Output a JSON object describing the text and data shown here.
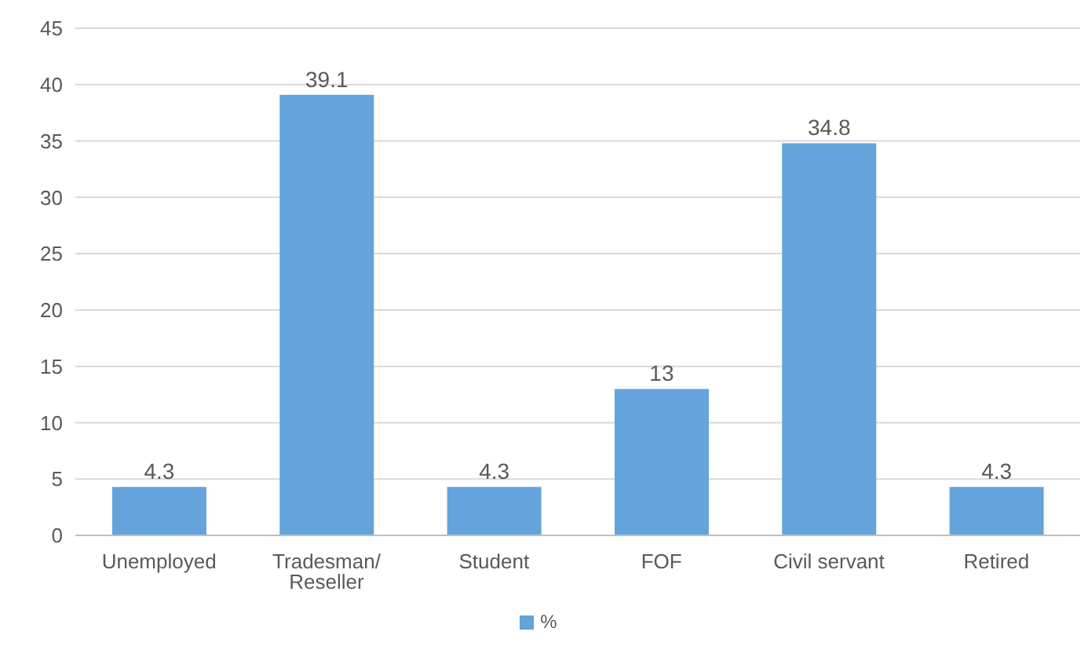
{
  "chart_data": {
    "type": "bar",
    "categories": [
      "Unemployed",
      "Tradesman/ Reseller",
      "Student",
      "FOF",
      "Civil servant",
      "Retired"
    ],
    "series": [
      {
        "name": "%",
        "color": "#64a3dc",
        "values": [
          4.3,
          39.1,
          4.3,
          13,
          34.8,
          4.3
        ]
      }
    ],
    "ylim": [
      0,
      45
    ],
    "yticks": [
      0,
      5,
      10,
      15,
      20,
      25,
      30,
      35,
      40,
      45
    ],
    "grid": "y",
    "legend": "bottom",
    "data_labels": true
  }
}
